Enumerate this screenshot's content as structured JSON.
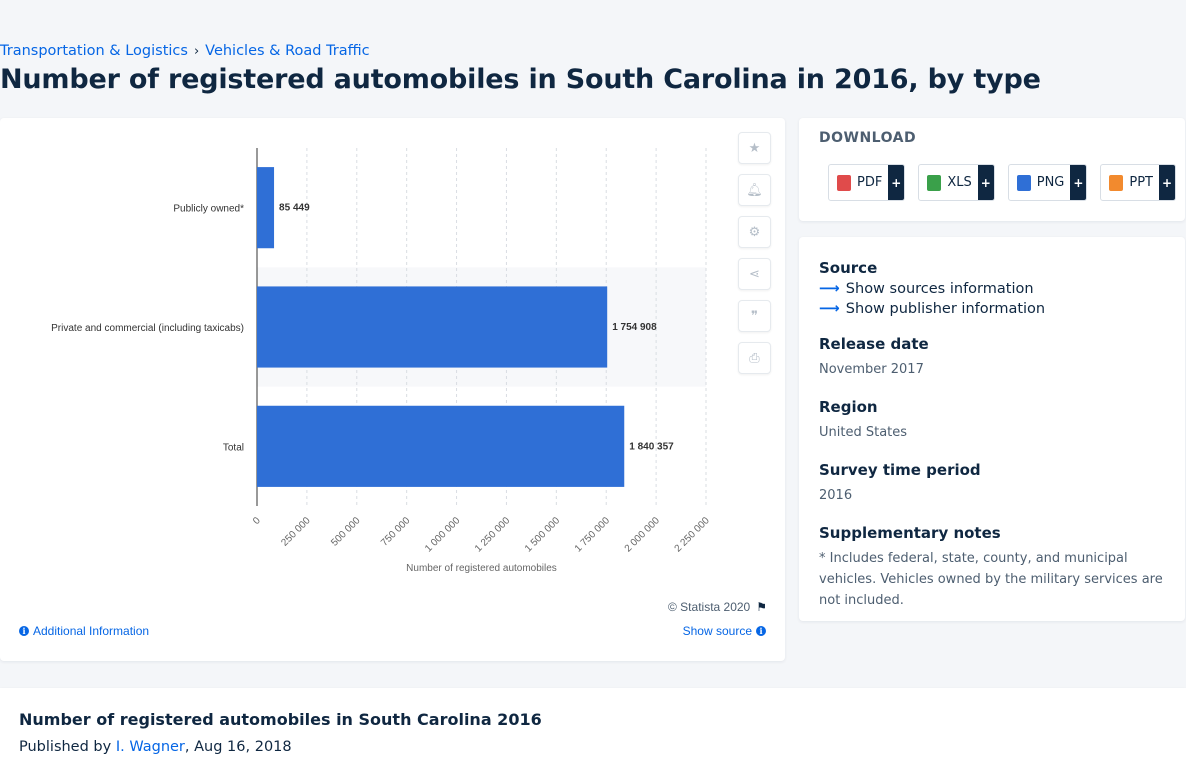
{
  "breadcrumb": {
    "items": [
      "Transportation & Logistics",
      "Vehicles & Road Traffic"
    ],
    "separator": "›"
  },
  "page": {
    "title": "Number of registered automobiles in South Carolina in 2016, by type"
  },
  "chart_data": {
    "type": "bar",
    "orientation": "horizontal",
    "categories": [
      "Publicly owned*",
      "Private and commercial (including taxicabs)",
      "Total"
    ],
    "values": [
      85449,
      1754908,
      1840357
    ],
    "value_labels": [
      "85 449",
      "1 754 908",
      "1 840 357"
    ],
    "x_ticks": [
      "0",
      "250 000",
      "500 000",
      "750 000",
      "1 000 000",
      "1 250 000",
      "1 500 000",
      "1 750 000",
      "2 000 000",
      "2 250 000"
    ],
    "xlim": [
      0,
      2250000
    ],
    "xlabel": "Number of registered automobiles",
    "ylabel": "",
    "bar_color": "#2f6fd6",
    "grid": true
  },
  "chart_card": {
    "copyright": "© Statista 2020",
    "additional_info": "Additional Information",
    "show_source": "Show source",
    "side_icons": [
      "star-icon",
      "bell-icon",
      "gear-icon",
      "share-icon",
      "quote-icon",
      "print-icon"
    ]
  },
  "download": {
    "title": "DOWNLOAD",
    "buttons": [
      {
        "label": "PDF",
        "plus": "+",
        "icon_color": "#e04b4b"
      },
      {
        "label": "XLS",
        "plus": "+",
        "icon_color": "#3aa04a"
      },
      {
        "label": "PNG",
        "plus": "+",
        "icon_color": "#2f6fd6"
      },
      {
        "label": "PPT",
        "plus": "+",
        "icon_color": "#f28a2e"
      }
    ]
  },
  "meta": {
    "source_head": "Source",
    "show_sources": "Show sources information",
    "show_publisher": "Show publisher information",
    "release_head": "Release date",
    "release_val": "November 2017",
    "region_head": "Region",
    "region_val": "United States",
    "survey_head": "Survey time period",
    "survey_val": "2016",
    "notes_head": "Supplementary notes",
    "notes_val": "* Includes federal, state, county, and municipal vehicles. Vehicles owned by the military services are not included."
  },
  "bottom": {
    "title": "Number of registered automobiles in South Carolina 2016",
    "published_prefix": "Published by",
    "author": "I. Wagner",
    "date": ", Aug 16, 2018"
  },
  "colors": {
    "accent": "#0666e5",
    "navy": "#0f2741"
  }
}
